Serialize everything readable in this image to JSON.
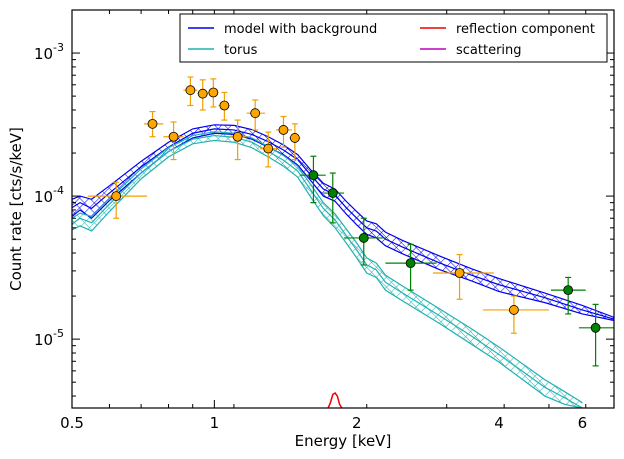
{
  "chart_data": {
    "type": "line",
    "xlabel": "Energy [keV]",
    "ylabel": "Count rate [cts/s/keV]",
    "xscale": "log",
    "yscale": "log",
    "xlim": [
      0.5,
      7.0
    ],
    "ylim": [
      3.3e-06,
      0.002
    ],
    "grid": false,
    "legend_placement": "top-right",
    "x_ticks": [
      {
        "value": 0.5,
        "label": "0.5"
      },
      {
        "value": 1,
        "label": "1"
      },
      {
        "value": 2,
        "label": "2"
      },
      {
        "value": 4,
        "label": "4"
      },
      {
        "value": 6,
        "label": "6"
      }
    ],
    "y_ticks": [
      {
        "value": 1e-05,
        "base": "10",
        "exp": "-5"
      },
      {
        "value": 0.0001,
        "base": "10",
        "exp": "-4"
      },
      {
        "value": 0.001,
        "base": "10",
        "exp": "-3"
      }
    ],
    "legend": [
      {
        "name": "model with background",
        "color": "#0000ee"
      },
      {
        "name": "torus",
        "color": "#20b2b2"
      },
      {
        "name": "reflection component",
        "color": "#ee0000"
      },
      {
        "name": "scattering",
        "color": "#c000c0"
      }
    ],
    "series": [
      {
        "name": "model with background",
        "role": "band",
        "color": "#0000ee",
        "x": [
          0.5,
          0.52,
          0.55,
          0.6,
          0.7,
          0.8,
          0.9,
          1.0,
          1.1,
          1.2,
          1.3,
          1.4,
          1.5,
          1.6,
          1.7,
          1.8,
          1.9,
          2.0,
          2.1,
          2.2,
          2.3,
          2.5,
          3.0,
          3.5,
          4.0,
          5.0,
          6.0,
          7.0
        ],
        "mid": [
          8.3e-05,
          9e-05,
          8.2e-05,
          0.000105,
          0.00016,
          0.00022,
          0.000275,
          0.000295,
          0.00029,
          0.00027,
          0.00024,
          0.00021,
          0.00018,
          0.00014,
          0.000112,
          0.000102,
          8.3e-05,
          7e-05,
          6e-05,
          5.7e-05,
          5e-05,
          4.4e-05,
          3.4e-05,
          2.8e-05,
          2.4e-05,
          1.95e-05,
          1.6e-05,
          1.38e-05
        ],
        "lower": [
          7.2e-05,
          8e-05,
          7e-05,
          9.3e-05,
          0.000145,
          0.000205,
          0.000255,
          0.000275,
          0.00027,
          0.00025,
          0.00022,
          0.000195,
          0.000165,
          0.000128,
          0.0001,
          9.2e-05,
          7.5e-05,
          6.3e-05,
          5.4e-05,
          5.1e-05,
          4.5e-05,
          3.95e-05,
          3.05e-05,
          2.55e-05,
          2.15e-05,
          1.8e-05,
          1.5e-05,
          1.35e-05
        ],
        "upper": [
          9.5e-05,
          0.0001,
          9.5e-05,
          0.000118,
          0.000175,
          0.000238,
          0.000295,
          0.000315,
          0.000312,
          0.000292,
          0.00026,
          0.000228,
          0.000195,
          0.000152,
          0.000123,
          0.000112,
          9.2e-05,
          7.8e-05,
          6.7e-05,
          6.4e-05,
          5.6e-05,
          4.9e-05,
          3.8e-05,
          3.1e-05,
          2.65e-05,
          2.1e-05,
          1.72e-05,
          1.42e-05
        ]
      },
      {
        "name": "torus",
        "role": "band",
        "color": "#20b2b2",
        "x": [
          0.5,
          0.52,
          0.55,
          0.6,
          0.7,
          0.8,
          0.9,
          1.0,
          1.1,
          1.2,
          1.3,
          1.4,
          1.5,
          1.6,
          1.7,
          1.8,
          1.9,
          2.0,
          2.1,
          2.2,
          2.3,
          2.5,
          3.0,
          3.5,
          4.0,
          5.0,
          5.5,
          6.0
        ],
        "mid": [
          6.4e-05,
          7e-05,
          6.5e-05,
          8.8e-05,
          0.000145,
          0.000205,
          0.00025,
          0.000265,
          0.000258,
          0.000238,
          0.000205,
          0.000178,
          0.00015,
          0.00011,
          8.2e-05,
          6.8e-05,
          5.3e-05,
          4.2e-05,
          3.3e-05,
          3.05e-05,
          2.5e-05,
          2.1e-05,
          1.45e-05,
          1.05e-05,
          7.8e-06,
          4.6e-06,
          3.9e-06,
          3.3e-06
        ],
        "lower": [
          5.8e-05,
          6.2e-05,
          5.7e-05,
          7.8e-05,
          0.000132,
          0.000188,
          0.000232,
          0.000245,
          0.000238,
          0.000218,
          0.000188,
          0.000162,
          0.000136,
          9.8e-05,
          7.3e-05,
          6e-05,
          4.7e-05,
          3.7e-05,
          2.9e-05,
          2.7e-05,
          2.2e-05,
          1.85e-05,
          1.28e-05,
          9.2e-06,
          6.9e-06,
          4e-06,
          3.5e-06,
          3.3e-06
        ],
        "upper": [
          7e-05,
          7.6e-05,
          7.2e-05,
          9.6e-05,
          0.000155,
          0.000218,
          0.000265,
          0.000282,
          0.000275,
          0.000255,
          0.000222,
          0.000192,
          0.000162,
          0.00012,
          9e-05,
          7.5e-05,
          5.9e-05,
          4.7e-05,
          3.7e-05,
          3.4e-05,
          2.8e-05,
          2.35e-05,
          1.62e-05,
          1.18e-05,
          8.8e-06,
          5.2e-06,
          4.3e-06,
          3.6e-06
        ]
      },
      {
        "name": "reflection component",
        "role": "line",
        "color": "#ee0000",
        "x": [
          1.74,
          1.76,
          1.78,
          1.8,
          1.82,
          1.84,
          1.86
        ],
        "y": [
          3.3e-06,
          3.6e-06,
          4.1e-06,
          4.2e-06,
          4e-06,
          3.5e-06,
          3.3e-06
        ]
      }
    ],
    "data_points": [
      {
        "group": "orange",
        "color": "#f0a000",
        "points": [
          {
            "x": 0.62,
            "y": 0.0001,
            "xerr": [
              0.54,
              0.72
            ],
            "yerr": [
              7e-05,
              0.000125
            ]
          },
          {
            "x": 0.74,
            "y": 0.00032,
            "xerr": [
              0.71,
              0.78
            ],
            "yerr": [
              0.00026,
              0.00039
            ]
          },
          {
            "x": 0.82,
            "y": 0.00026,
            "xerr": [
              0.78,
              0.86
            ],
            "yerr": [
              0.00018,
              0.00033
            ]
          },
          {
            "x": 0.89,
            "y": 0.00055,
            "xerr": [
              0.86,
              0.92
            ],
            "yerr": [
              0.00043,
              0.00068
            ]
          },
          {
            "x": 0.945,
            "y": 0.00052,
            "xerr": [
              0.92,
              0.97
            ],
            "yerr": [
              0.0004,
              0.00065
            ]
          },
          {
            "x": 0.995,
            "y": 0.00053,
            "xerr": [
              0.97,
              1.02
            ],
            "yerr": [
              0.00042,
              0.00066
            ]
          },
          {
            "x": 1.05,
            "y": 0.00043,
            "xerr": [
              1.02,
              1.08
            ],
            "yerr": [
              0.00034,
              0.00053
            ]
          },
          {
            "x": 1.12,
            "y": 0.00026,
            "xerr": [
              1.08,
              1.17
            ],
            "yerr": [
              0.00018,
              0.00034
            ]
          },
          {
            "x": 1.22,
            "y": 0.00038,
            "xerr": [
              1.17,
              1.28
            ],
            "yerr": [
              0.00029,
              0.00047
            ]
          },
          {
            "x": 1.3,
            "y": 0.000215,
            "xerr": [
              1.25,
              1.36
            ],
            "yerr": [
              0.00016,
              0.00028
            ]
          },
          {
            "x": 1.4,
            "y": 0.00029,
            "xerr": [
              1.35,
              1.46
            ],
            "yerr": [
              0.00022,
              0.00036
            ]
          },
          {
            "x": 1.48,
            "y": 0.000255,
            "xerr": [
              1.44,
              1.52
            ],
            "yerr": [
              0.00018,
              0.00032
            ]
          },
          {
            "x": 3.3,
            "y": 2.9e-05,
            "xerr": [
              2.9,
              3.9
            ],
            "yerr": [
              1.9e-05,
              3.9e-05
            ]
          },
          {
            "x": 4.3,
            "y": 1.6e-05,
            "xerr": [
              3.7,
              5.1
            ],
            "yerr": [
              1.1e-05,
              2e-05
            ]
          }
        ]
      },
      {
        "group": "green",
        "color": "#008000",
        "points": [
          {
            "x": 1.62,
            "y": 0.00014,
            "xerr": [
              1.52,
              1.72
            ],
            "yerr": [
              9e-05,
              0.00019
            ]
          },
          {
            "x": 1.78,
            "y": 0.000105,
            "xerr": [
              1.7,
              1.88
            ],
            "yerr": [
              6.5e-05,
              0.000145
            ]
          },
          {
            "x": 2.07,
            "y": 5.1e-05,
            "xerr": [
              1.88,
              2.3
            ],
            "yerr": [
              3.3e-05,
              7e-05
            ]
          },
          {
            "x": 2.6,
            "y": 3.4e-05,
            "xerr": [
              2.3,
              2.95
            ],
            "yerr": [
              2.2e-05,
              4.6e-05
            ]
          },
          {
            "x": 5.6,
            "y": 2.2e-05,
            "xerr": [
              5.15,
              6.1
            ],
            "yerr": [
              1.5e-05,
              2.7e-05
            ]
          },
          {
            "x": 6.4,
            "y": 1.2e-05,
            "xerr": [
              5.9,
              7.0
            ],
            "yerr": [
              6.5e-06,
              1.75e-05
            ]
          }
        ]
      }
    ]
  }
}
